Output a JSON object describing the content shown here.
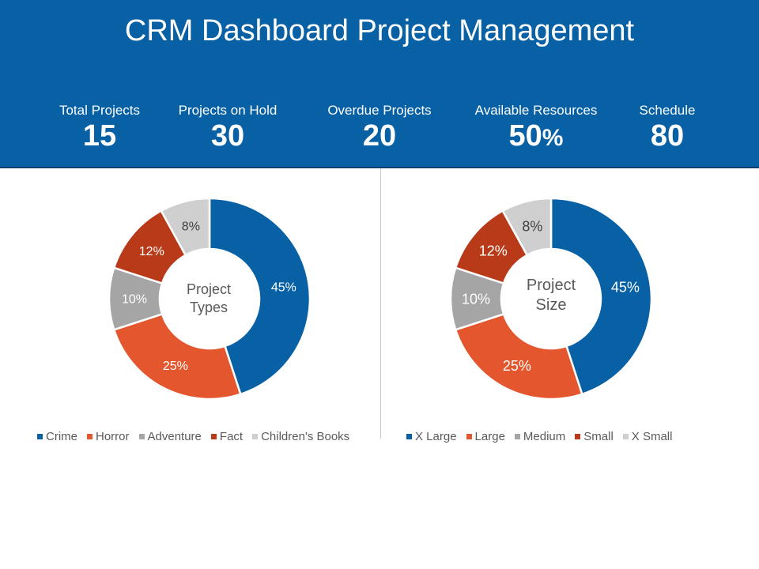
{
  "header": {
    "title": "CRM Dashboard Project Management",
    "kpis": [
      {
        "label": "Total Projects",
        "value": "15",
        "suffix": ""
      },
      {
        "label": "Projects on Hold",
        "value": "30",
        "suffix": ""
      },
      {
        "label": "Overdue Projects",
        "value": "20",
        "suffix": ""
      },
      {
        "label": "Available Resources",
        "value": "50",
        "suffix": "%"
      },
      {
        "label": "Schedule",
        "value": "80",
        "suffix": ""
      }
    ]
  },
  "colors": {
    "header_bg": "#0860a5",
    "series": [
      "#0860a5",
      "#e4572e",
      "#a5a5a5",
      "#b83a18",
      "#cfcfcf"
    ]
  },
  "chart_data": [
    {
      "type": "pie",
      "variant": "donut",
      "title": "Project Types",
      "center_label": [
        "Project",
        "Types"
      ],
      "categories": [
        "Crime",
        "Horror",
        "Adventure",
        "Fact",
        "Children's Books"
      ],
      "values": [
        45,
        25,
        10,
        12,
        8
      ],
      "data_labels": [
        "45%",
        "25%",
        "10%",
        "12%",
        "8%"
      ],
      "legend": "bottom"
    },
    {
      "type": "pie",
      "variant": "donut",
      "title": "Project Size",
      "center_label": [
        "Project",
        "Size"
      ],
      "categories": [
        "X Large",
        "Large",
        "Medium",
        "Small",
        "X Small"
      ],
      "values": [
        45,
        25,
        10,
        12,
        8
      ],
      "data_labels": [
        "45%",
        "25%",
        "10%",
        "12%",
        "8%"
      ],
      "legend": "bottom"
    }
  ]
}
